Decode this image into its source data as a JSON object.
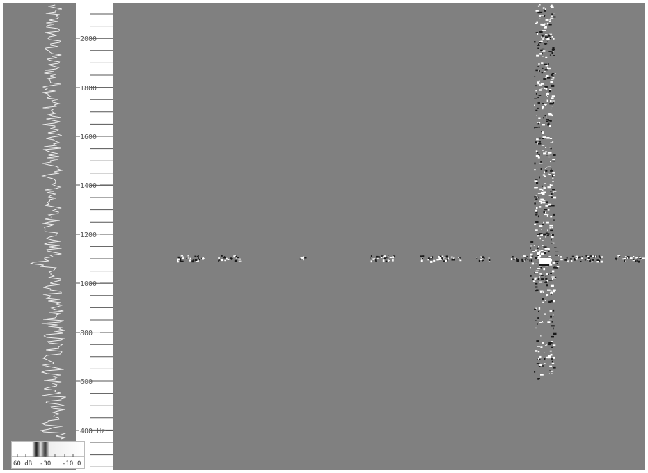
{
  "scale": {
    "unit": "Hz",
    "labels": [
      "2000",
      "1800",
      "1600",
      "1400",
      "1200",
      "1000",
      "800",
      "600",
      "400 Hz"
    ]
  },
  "legend": {
    "labels": [
      "60 dB",
      "-30",
      "-10",
      "0"
    ]
  },
  "colors": {
    "background": "#808080",
    "trace": "#f0f0f0",
    "scale_bg": "#ffffff",
    "noise_light": "#ffffff",
    "noise_dark": "#1a1a1a"
  }
}
